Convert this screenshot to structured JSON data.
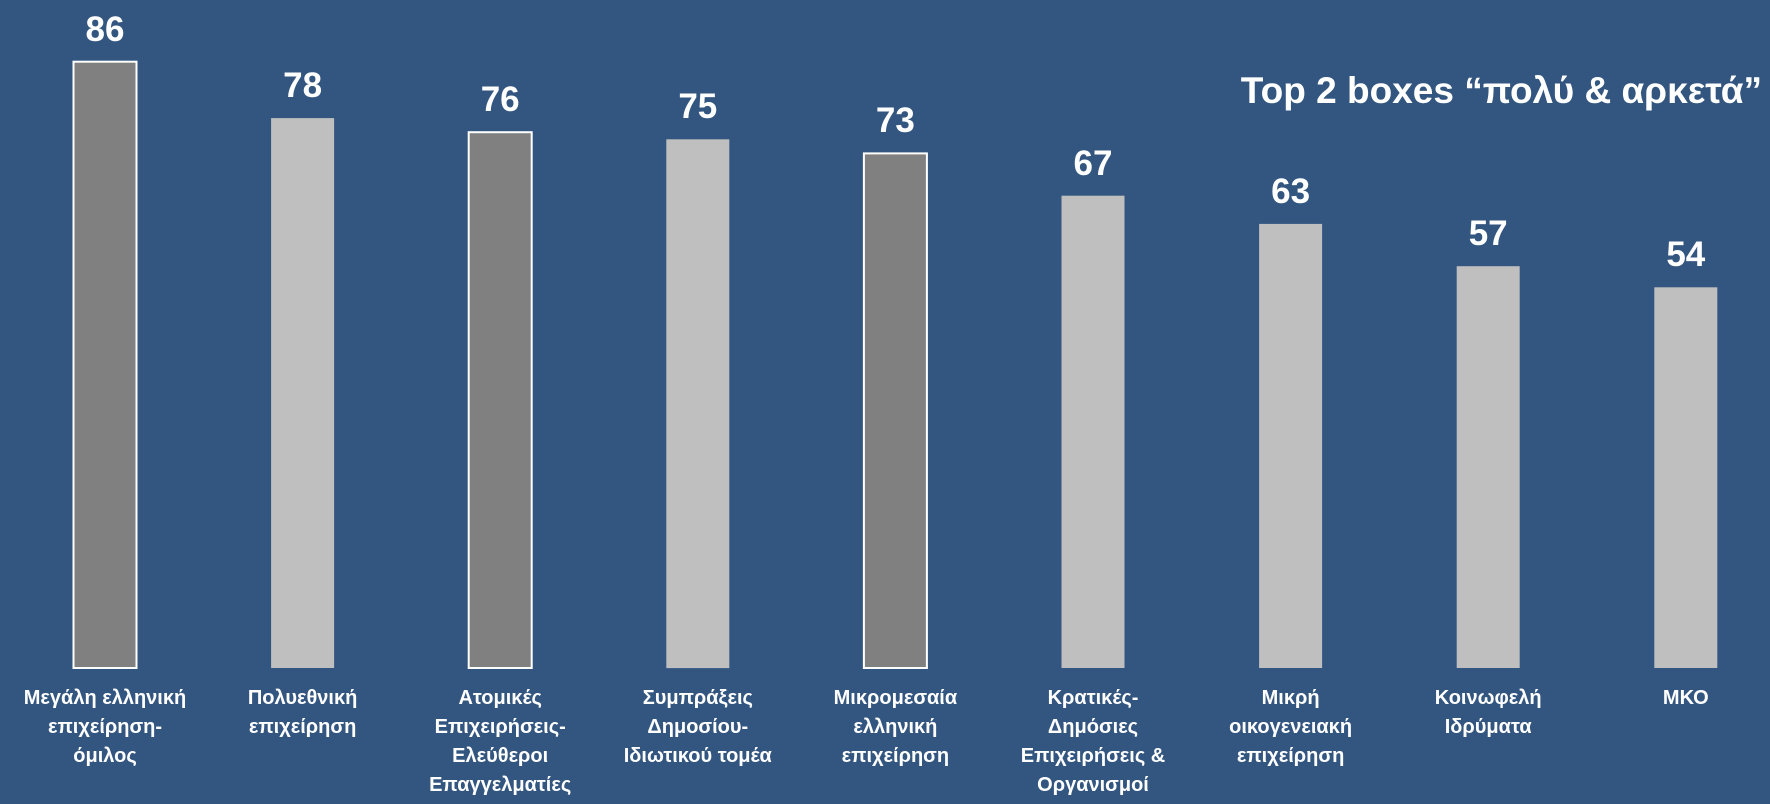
{
  "chart_data": {
    "type": "bar",
    "title": "",
    "annotation": "Top 2 boxes “πολύ & αρκετά”",
    "xlabel": "",
    "ylabel": "",
    "ylim": [
      0,
      86
    ],
    "categories": [
      "Μεγάλη ελληνική επιχείρηση-όμιλος",
      "Πολυεθνική επιχείρηση",
      "Ατομικές Επιχειρήσεις-Ελεύθεροι Επαγγελματίες",
      "Συμπράξεις Δημοσίου-Ιδιωτικού τομέα",
      "Μικρομεσαία ελληνική επιχείρηση",
      "Κρατικές-Δημόσιες Επιχειρήσεις & Οργανισμοί",
      "Μικρή οικογενειακή επιχείρηση",
      "Κοινωφελή Ιδρύματα",
      "ΜΚΟ"
    ],
    "label_lines": [
      [
        "Μεγάλη ελληνική",
        "επιχείρηση-",
        "όμιλος"
      ],
      [
        "Πολυεθνική",
        "επιχείρηση"
      ],
      [
        "Ατομικές",
        "Επιχειρήσεις-",
        "Ελεύθεροι",
        "Επαγγελματίες"
      ],
      [
        "Συμπράξεις",
        "Δημοσίου-",
        "Ιδιωτικού τομέα"
      ],
      [
        "Μικρομεσαία",
        "ελληνική",
        "επιχείρηση"
      ],
      [
        "Κρατικές-",
        "Δημόσιες",
        "Επιχειρήσεις &",
        "Οργανισμοί"
      ],
      [
        "Μικρή",
        "οικογενειακή",
        "επιχείρηση"
      ],
      [
        "Κοινωφελή",
        "Ιδρύματα"
      ],
      [
        "ΜΚΟ"
      ]
    ],
    "values": [
      86,
      78,
      76,
      75,
      73,
      67,
      63,
      57,
      54
    ],
    "highlighted": [
      true,
      false,
      true,
      false,
      true,
      false,
      false,
      false,
      false
    ],
    "colors": {
      "background": "#335681",
      "highlight_bar": "#808080",
      "highlight_outline": "#ffffff",
      "normal_bar": "#bfbfbf",
      "text": "#ffffff"
    },
    "grid": false,
    "legend": "none"
  }
}
